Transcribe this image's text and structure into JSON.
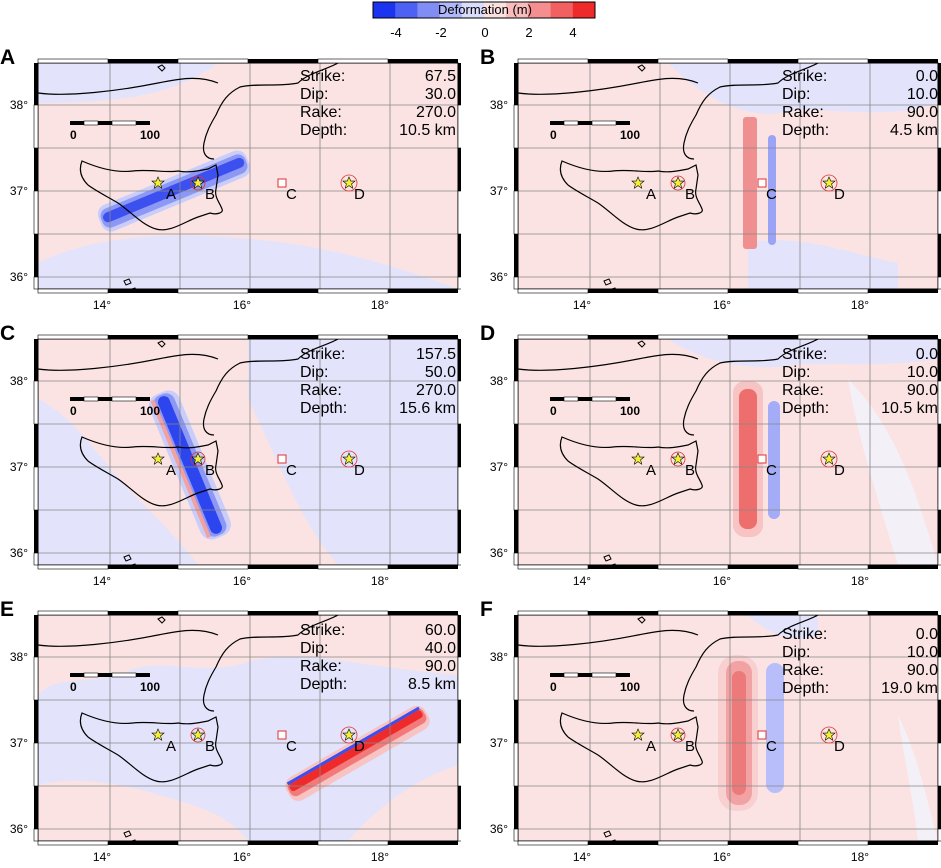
{
  "colorbar": {
    "title": "Deformation (m)",
    "ticks": [
      "-4",
      "-2",
      "0",
      "2",
      "4"
    ],
    "colors": [
      "#1a34f0",
      "#4d61f2",
      "#7f8df5",
      "#b0b8f9",
      "#dadcfb",
      "#fbe0e0",
      "#f9bcbc",
      "#f58f8f",
      "#f16161",
      "#ee2a2a"
    ]
  },
  "axes": {
    "lon_ticks": [
      "14°",
      "16°",
      "18°"
    ],
    "lat_ticks": [
      "38°",
      "37°",
      "36°"
    ]
  },
  "scalebar": {
    "zero": "0",
    "hundred": "100"
  },
  "sites": {
    "A": "A",
    "B": "B",
    "C": "C",
    "D": "D"
  },
  "param_labels": {
    "strike": "Strike:",
    "dip": "Dip:",
    "rake": "Rake:",
    "depth": "Depth:"
  },
  "panels": [
    {
      "id": "A",
      "strike": "67.5",
      "dip": "30.0",
      "rake": "270.0",
      "depth": "10.5 km"
    },
    {
      "id": "B",
      "strike": "0.0",
      "dip": "10.0",
      "rake": "90.0",
      "depth": "4.5 km"
    },
    {
      "id": "C",
      "strike": "157.5",
      "dip": "50.0",
      "rake": "270.0",
      "depth": "15.6 km"
    },
    {
      "id": "D",
      "strike": "0.0",
      "dip": "10.0",
      "rake": "90.0",
      "depth": "10.5 km"
    },
    {
      "id": "E",
      "strike": "60.0",
      "dip": "40.0",
      "rake": "90.0",
      "depth": "8.5 km"
    },
    {
      "id": "F",
      "strike": "0.0",
      "dip": "10.0",
      "rake": "90.0",
      "depth": "19.0 km"
    }
  ]
}
